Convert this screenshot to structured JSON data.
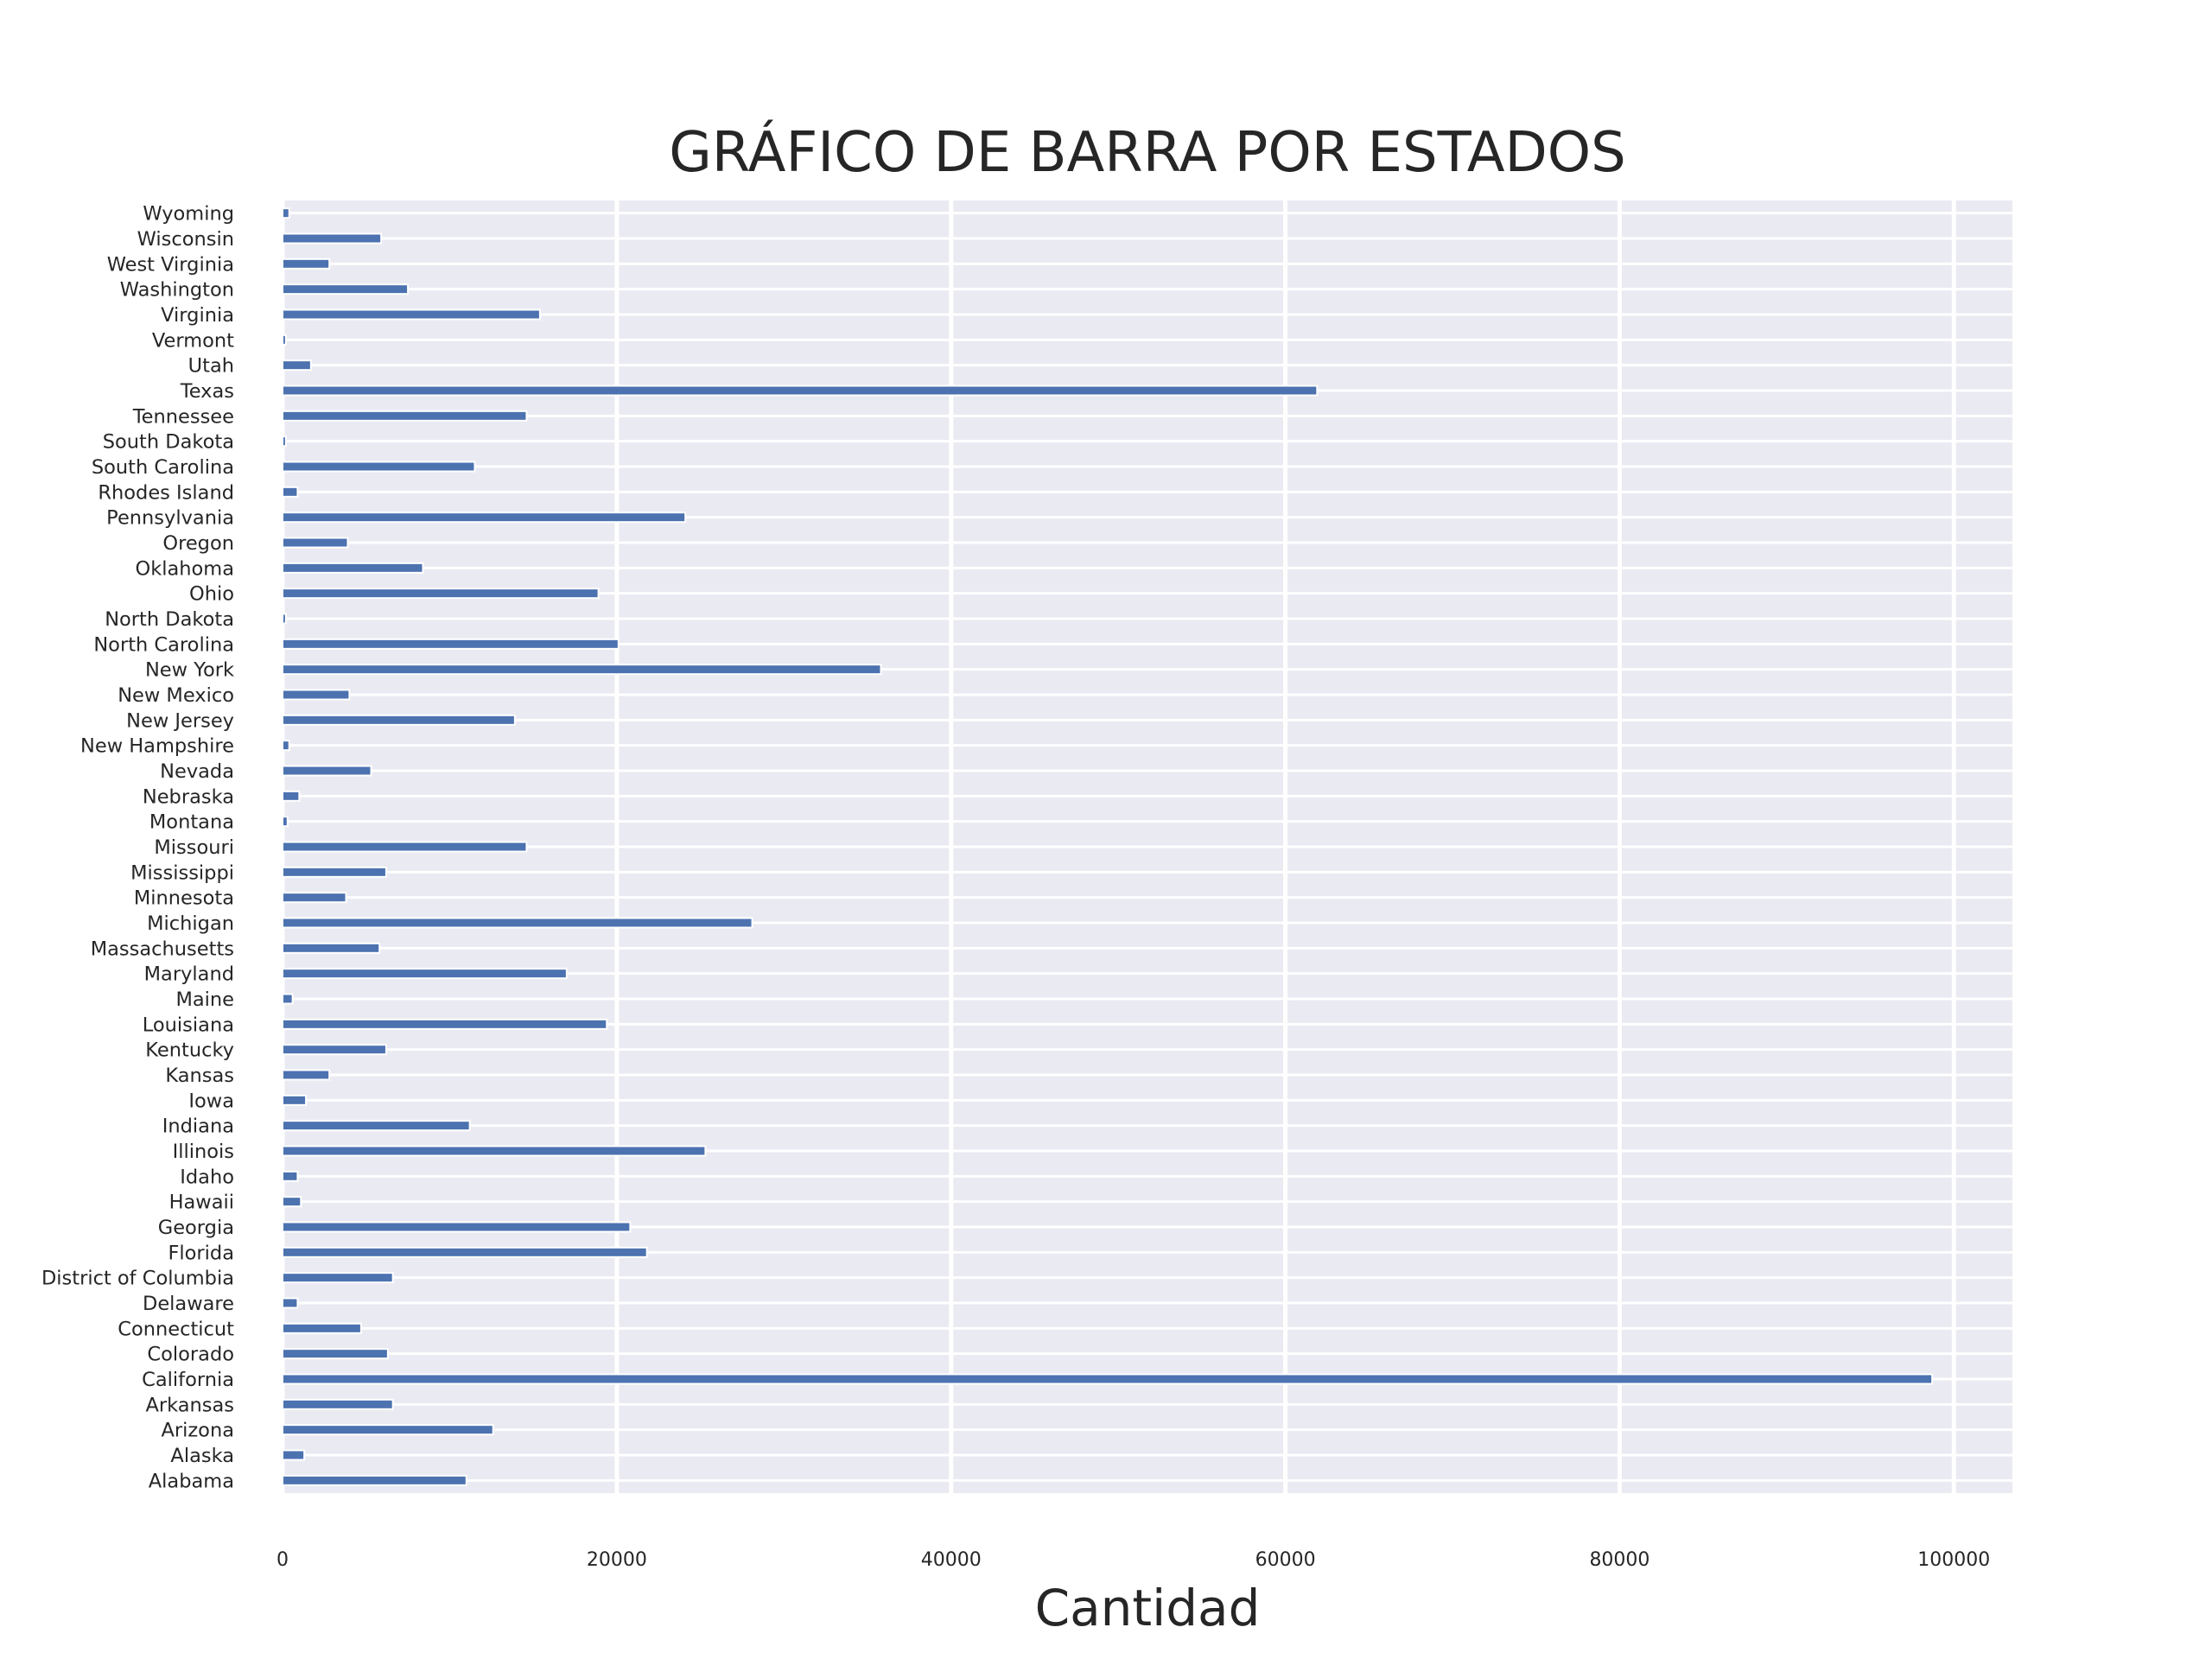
{
  "chart_data": {
    "type": "bar",
    "orientation": "horizontal",
    "title": "GRÁFICO DE BARRA POR ESTADOS",
    "xlabel": "Cantidad",
    "ylabel": "",
    "xlim": [
      0,
      103500
    ],
    "xticks": [
      0,
      20000,
      40000,
      60000,
      80000,
      100000
    ],
    "xtick_labels": [
      "0",
      "20000",
      "40000",
      "60000",
      "80000",
      "100000"
    ],
    "grid": true,
    "bar_color": "#4c72b0",
    "categories": [
      "Alabama",
      "Alaska",
      "Arizona",
      "Arkansas",
      "California",
      "Colorado",
      "Connecticut",
      "Delaware",
      "District of Columbia",
      "Florida",
      "Georgia",
      "Hawaii",
      "Idaho",
      "Illinois",
      "Indiana",
      "Iowa",
      "Kansas",
      "Kentucky",
      "Louisiana",
      "Maine",
      "Maryland",
      "Massachusetts",
      "Michigan",
      "Minnesota",
      "Mississippi",
      "Missouri",
      "Montana",
      "Nebraska",
      "Nevada",
      "New Hampshire",
      "New Jersey",
      "New Mexico",
      "New York",
      "North Carolina",
      "North Dakota",
      "Ohio",
      "Oklahoma",
      "Oregon",
      "Pennsylvania",
      "Rhodes Island",
      "South Carolina",
      "South Dakota",
      "Tennessee",
      "Texas",
      "Utah",
      "Vermont",
      "Virginia",
      "Washington",
      "West Virginia",
      "Wisconsin",
      "Wyoming"
    ],
    "values": [
      11000,
      1300,
      12600,
      6600,
      98700,
      6300,
      4700,
      900,
      6600,
      21800,
      20800,
      1100,
      900,
      25300,
      11200,
      1400,
      2800,
      6200,
      19400,
      600,
      17000,
      5800,
      28100,
      3800,
      6200,
      14600,
      300,
      1000,
      5300,
      400,
      13900,
      4000,
      35800,
      20100,
      200,
      18900,
      8400,
      3900,
      24100,
      900,
      11500,
      200,
      14600,
      61900,
      1700,
      200,
      15400,
      7500,
      2800,
      5900,
      400
    ]
  }
}
